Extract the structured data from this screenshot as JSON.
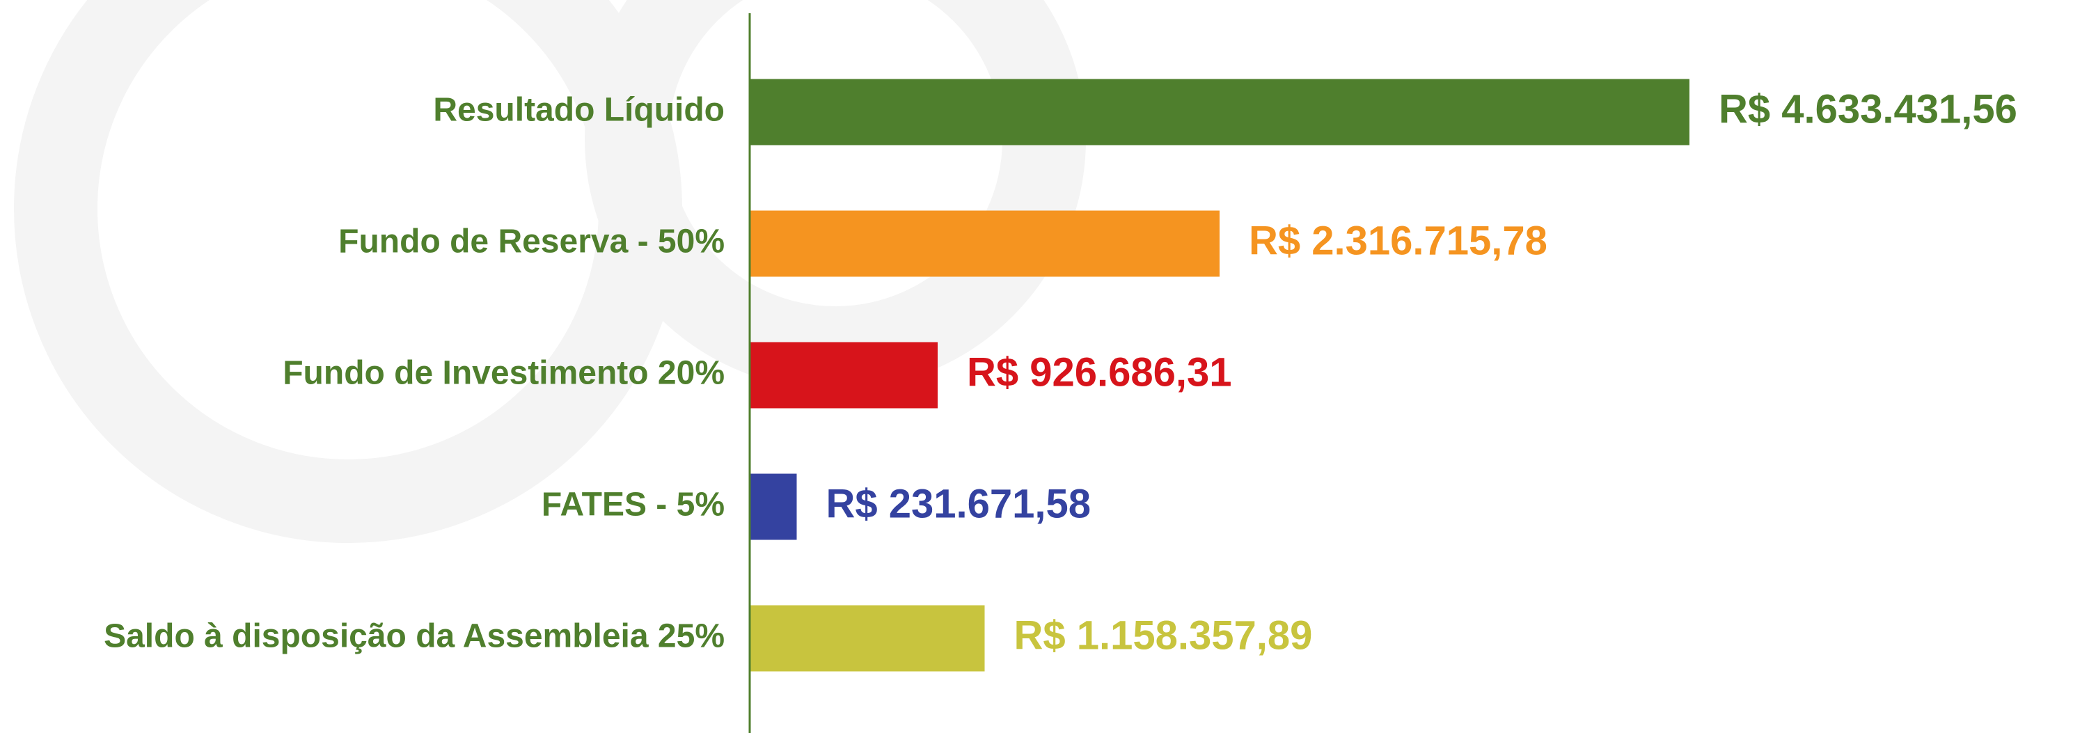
{
  "chart_data": {
    "type": "barh",
    "categories": [
      "Resultado Líquido",
      "Fundo de Reserva - 50%",
      "Fundo de Investimento 20%",
      "FATES - 5%",
      "Saldo à disposição da Assembleia 25%"
    ],
    "values": [
      4633431.56,
      2316715.78,
      926686.31,
      231671.58,
      1158357.89
    ],
    "value_labels": [
      "R$ 4.633.431,56",
      "R$ 2.316.715,78",
      "R$ 926.686,31",
      "R$ 231.671,58",
      "R$ 1.158.357,89"
    ],
    "colors": [
      "#4f7f2d",
      "#f59420",
      "#d7141b",
      "#3442a0",
      "#c8c43e"
    ],
    "label_color": "#4f7f2d"
  }
}
